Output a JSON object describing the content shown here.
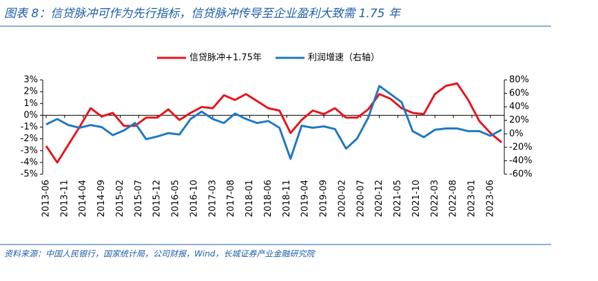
{
  "chart_data": {
    "type": "line",
    "title": "图表 8：信贷脉冲可作为先行指标，信贷脉冲传导至企业盈利大致需 1.75 年",
    "source": "资料来源：中国人民银行，国家统计局，公司财报，Wind，长城证券产业金融研究院",
    "x": [
      "2013-06",
      "2013-09",
      "2013-12",
      "2014-03",
      "2014-06",
      "2014-09",
      "2014-12",
      "2015-03",
      "2015-06",
      "2015-09",
      "2015-12",
      "2016-03",
      "2016-06",
      "2016-09",
      "2016-12",
      "2017-03",
      "2017-06",
      "2017-09",
      "2017-12",
      "2018-03",
      "2018-06",
      "2018-09",
      "2018-12",
      "2019-03",
      "2019-06",
      "2019-09",
      "2019-12",
      "2020-03",
      "2020-06",
      "2020-09",
      "2020-12",
      "2021-03",
      "2021-06",
      "2021-09",
      "2021-12",
      "2022-03",
      "2022-06",
      "2022-09",
      "2022-12",
      "2023-03",
      "2023-06",
      "2023-09"
    ],
    "xlim": [
      "2013-06",
      "2023-09"
    ],
    "xticks": [
      "2013-06",
      "2013-11",
      "2014-04",
      "2014-09",
      "2015-02",
      "2015-07",
      "2015-12",
      "2016-05",
      "2016-10",
      "2017-03",
      "2017-08",
      "2018-01",
      "2018-06",
      "2018-11",
      "2019-04",
      "2019-09",
      "2020-02",
      "2020-07",
      "2020-12",
      "2021-05",
      "2021-10",
      "2022-03",
      "2022-08",
      "2023-01",
      "2023-06"
    ],
    "ylim": [
      -5,
      3
    ],
    "yticks": [
      {
        "value": -5,
        "label": "-5%"
      },
      {
        "value": -4,
        "label": "-4%"
      },
      {
        "value": -3,
        "label": "-3%"
      },
      {
        "value": -2,
        "label": "-2%"
      },
      {
        "value": -1,
        "label": "-1%"
      },
      {
        "value": 0,
        "label": "0%"
      },
      {
        "value": 1,
        "label": "1%"
      },
      {
        "value": 2,
        "label": "2%"
      },
      {
        "value": 3,
        "label": "3%"
      }
    ],
    "y2lim": [
      -60,
      80
    ],
    "y2ticks": [
      {
        "value": -60,
        "label": "-60%"
      },
      {
        "value": -40,
        "label": "-40%"
      },
      {
        "value": -20,
        "label": "-20%"
      },
      {
        "value": 0,
        "label": "0%"
      },
      {
        "value": 20,
        "label": "20%"
      },
      {
        "value": 40,
        "label": "40%"
      },
      {
        "value": 60,
        "label": "60%"
      },
      {
        "value": 80,
        "label": "80%"
      }
    ],
    "legend": "top",
    "series": [
      {
        "name": "信贷脉冲+1.75年",
        "color": "#e8141b",
        "values": [
          -2.6,
          -4.0,
          -2.5,
          -1.0,
          0.6,
          -0.1,
          0.2,
          -0.9,
          -0.9,
          -0.2,
          -0.2,
          0.5,
          -0.4,
          0.2,
          0.7,
          0.6,
          1.7,
          1.3,
          1.8,
          1.2,
          0.6,
          0.4,
          -1.5,
          -0.4,
          0.4,
          0.1,
          0.6,
          -0.2,
          -0.2,
          0.5,
          1.8,
          1.4,
          0.6,
          0.2,
          0.1,
          1.8,
          2.5,
          2.7,
          1.3,
          -0.5,
          -1.5,
          -2.3
        ]
      },
      {
        "name": "利润增速（右轴）",
        "color": "#1f78c1",
        "axis": "y2",
        "values": [
          14,
          22,
          13,
          9,
          13,
          10,
          -2,
          5,
          16,
          -8,
          -4,
          1,
          -1,
          22,
          33,
          22,
          16,
          30,
          22,
          16,
          19,
          9,
          -37,
          12,
          9,
          11,
          7,
          -22,
          -7,
          24,
          71,
          59,
          47,
          4,
          -5,
          6,
          8,
          8,
          4,
          4,
          -3,
          6
        ]
      }
    ]
  }
}
